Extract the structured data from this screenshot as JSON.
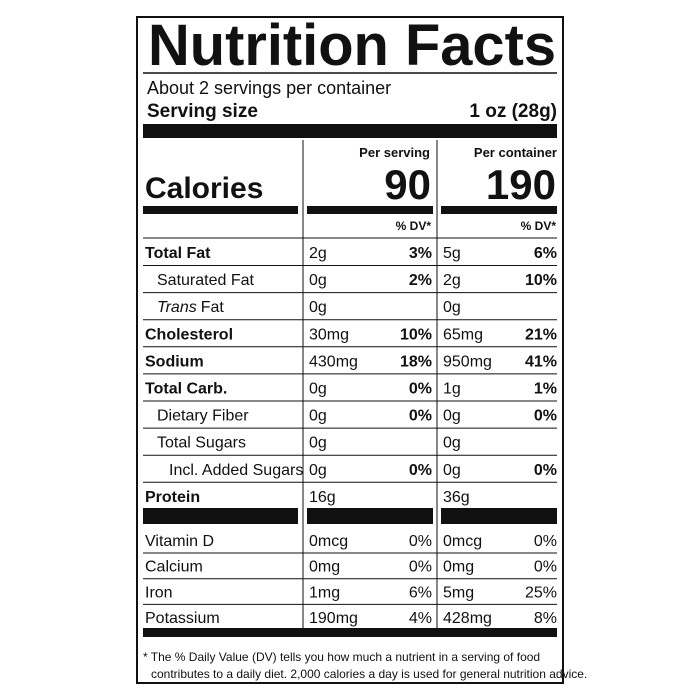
{
  "header": {
    "title": "Nutrition Facts",
    "servings": "About 2 servings per container",
    "serving_size_label": "Serving size",
    "serving_size_value": "1 oz (28g)"
  },
  "columns": [
    "Per serving",
    "Per container"
  ],
  "calories": {
    "label": "Calories",
    "values": [
      "90",
      "190"
    ]
  },
  "dv_header": [
    "% DV*",
    "% DV*"
  ],
  "nutrients": [
    {
      "name": "Total Fat",
      "level": 0,
      "values": [
        {
          "amount": "2g",
          "dv": "3%"
        },
        {
          "amount": "5g",
          "dv": "6%"
        }
      ]
    },
    {
      "name": "Saturated Fat",
      "level": 1,
      "values": [
        {
          "amount": "0g",
          "dv": "2%"
        },
        {
          "amount": "2g",
          "dv": "10%"
        }
      ]
    },
    {
      "name_italic": "Trans",
      "name": "Fat",
      "level": 1,
      "values": [
        {
          "amount": "0g"
        },
        {
          "amount": "0g"
        }
      ]
    },
    {
      "name": "Cholesterol",
      "level": 0,
      "values": [
        {
          "amount": "30mg",
          "dv": "10%"
        },
        {
          "amount": "65mg",
          "dv": "21%"
        }
      ]
    },
    {
      "name": "Sodium",
      "level": 0,
      "values": [
        {
          "amount": "430mg",
          "dv": "18%"
        },
        {
          "amount": "950mg",
          "dv": "41%"
        }
      ]
    },
    {
      "name": "Total Carb.",
      "level": 0,
      "values": [
        {
          "amount": "0g",
          "dv": "0%"
        },
        {
          "amount": "1g",
          "dv": "1%"
        }
      ]
    },
    {
      "name": "Dietary Fiber",
      "level": 1,
      "values": [
        {
          "amount": "0g",
          "dv": "0%"
        },
        {
          "amount": "0g",
          "dv": "0%"
        }
      ]
    },
    {
      "name": "Total Sugars",
      "level": 1,
      "values": [
        {
          "amount": "0g"
        },
        {
          "amount": "0g"
        }
      ]
    },
    {
      "name": "Incl. Added Sugars",
      "level": 2,
      "values": [
        {
          "amount": "0g",
          "dv": "0%"
        },
        {
          "amount": "0g",
          "dv": "0%"
        }
      ]
    },
    {
      "name": "Protein",
      "level": 0,
      "values": [
        {
          "amount": "16g"
        },
        {
          "amount": "36g"
        }
      ]
    }
  ],
  "vitamins": [
    {
      "name": "Vitamin D",
      "values": [
        {
          "amount": "0mcg",
          "dv": "0%"
        },
        {
          "amount": "0mcg",
          "dv": "0%"
        }
      ]
    },
    {
      "name": "Calcium",
      "values": [
        {
          "amount": "0mg",
          "dv": "0%"
        },
        {
          "amount": "0mg",
          "dv": "0%"
        }
      ]
    },
    {
      "name": "Iron",
      "values": [
        {
          "amount": "1mg",
          "dv": "6%"
        },
        {
          "amount": "5mg",
          "dv": "25%"
        }
      ]
    },
    {
      "name": "Potassium",
      "values": [
        {
          "amount": "190mg",
          "dv": "4%"
        },
        {
          "amount": "428mg",
          "dv": "8%"
        }
      ]
    }
  ],
  "footnote": [
    "* The % Daily Value (DV) tells you how much a nutrient in a serving of food",
    "contributes to a daily diet. 2,000 calories a day is used for general nutrition advice."
  ]
}
